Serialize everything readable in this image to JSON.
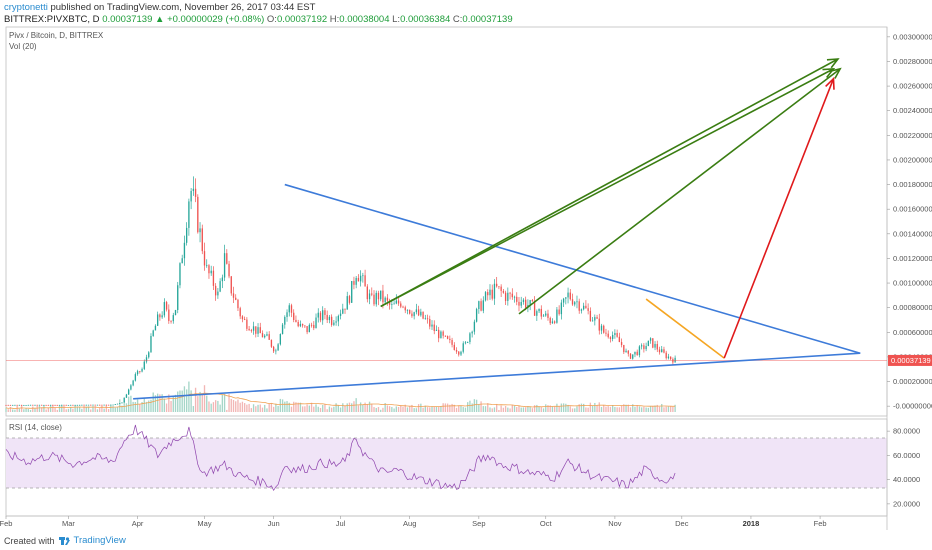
{
  "header": {
    "author": "cryptonetti",
    "published": " published on TradingView.com, November 26, 2017 03:44 EST",
    "symbol": "BITTREX:PIVXBTC, D",
    "last": "0.00037139",
    "up_arrow": "▲",
    "change": "+0.00000029 (+0.08%)",
    "o_label": "O:",
    "o_value": "0.00037192",
    "h_label": "H:",
    "h_value": "0.00038004",
    "l_label": "L:",
    "l_value": "0.00036384",
    "c_label": "C:",
    "c_value": "0.00037139"
  },
  "legend": {
    "pair": "Pivx / Bitcoin, D, BITTREX",
    "vol": "Vol (20)",
    "rsi": "RSI (14, close)"
  },
  "footer": {
    "created_with": "Created with",
    "brand": "TradingView"
  },
  "colors": {
    "up": "#26a69a",
    "down": "#ef5350",
    "trend_blue": "#3d7bd9",
    "green_arrow": "#3a7d12",
    "red_arrow": "#e0191b",
    "orange_line": "#f5a623",
    "rsi_band": "#f0e4f7",
    "price_tag": "#ef5350"
  },
  "chart_data": {
    "type": "candlestick",
    "symbol": "BITTREX:PIVXBTC",
    "interval": "D",
    "current_price": "0.00037139",
    "price_axis": {
      "ticks": [
        0.003,
        0.0028,
        0.0026,
        0.0024,
        0.0022,
        0.002,
        0.0018,
        0.0016,
        0.0014,
        0.0012,
        0.001,
        0.0008,
        0.0006,
        0.0004,
        0.0002,
        0.0
      ],
      "tick_labels": [
        "0.00300000",
        "0.00280000",
        "0.00260000",
        "0.00240000",
        "0.00220000",
        "0.00200000",
        "0.00180000",
        "0.00160000",
        "0.00140000",
        "0.00120000",
        "0.00100000",
        "0.00080000",
        "0.00060000",
        "0.00040000",
        "0.00020000",
        "-0.00000000"
      ],
      "range": [
        -8e-05,
        0.00308
      ]
    },
    "rsi_axis": {
      "ticks": [
        80,
        60,
        40,
        20
      ],
      "tick_labels": [
        "80.0000",
        "60.0000",
        "40.0000",
        "20.0000"
      ],
      "band": [
        30,
        70
      ],
      "range": [
        10,
        90
      ]
    },
    "time_axis": {
      "labels": [
        "Feb",
        "Mar",
        "Apr",
        "May",
        "Jun",
        "Jul",
        "Aug",
        "Sep",
        "Oct",
        "Nov",
        "Dec",
        "2018",
        "Feb"
      ],
      "bold_label": "2018",
      "day_offsets": [
        0,
        28,
        59,
        89,
        120,
        150,
        181,
        212,
        242,
        273,
        303,
        334,
        365
      ],
      "start": "2017-02-01",
      "end_offset": 395
    },
    "annotations": {
      "triangle_upper": [
        [
          125,
          0.0018
        ],
        [
          383,
          0.00043
        ]
      ],
      "triangle_lower": [
        [
          57,
          6e-05
        ],
        [
          383,
          0.00043
        ]
      ],
      "orange_line": [
        [
          287,
          0.00087
        ],
        [
          322,
          0.00039
        ]
      ],
      "green_arrows": [
        {
          "from": [
            168,
            0.00081
          ],
          "to": [
            373,
            0.00282
          ]
        },
        {
          "from": [
            230,
            0.00075
          ],
          "to": [
            374,
            0.00274
          ]
        },
        {
          "from": [
            168,
            0.00081
          ],
          "to": [
            371,
            0.00274
          ]
        }
      ],
      "red_arrow": {
        "from": [
          322,
          0.00039
        ],
        "to": [
          371,
          0.00266
        ]
      }
    },
    "price_keypoints": [
      [
        0,
        1e-05
      ],
      [
        30,
        1e-05
      ],
      [
        48,
        1.2e-05
      ],
      [
        52,
        3e-05
      ],
      [
        54,
        0.0001
      ],
      [
        56,
        0.00017
      ],
      [
        58,
        0.00025
      ],
      [
        61,
        0.0003
      ],
      [
        63,
        0.0004
      ],
      [
        66,
        0.0006
      ],
      [
        68,
        0.0007
      ],
      [
        71,
        0.0008
      ],
      [
        73,
        0.0007
      ],
      [
        76,
        0.0008
      ],
      [
        78,
        0.0011
      ],
      [
        80,
        0.0014
      ],
      [
        82,
        0.0017
      ],
      [
        83,
        0.00175
      ],
      [
        85,
        0.0016
      ],
      [
        88,
        0.0013
      ],
      [
        90,
        0.0011
      ],
      [
        93,
        0.001
      ],
      [
        95,
        0.0009
      ],
      [
        98,
        0.0012
      ],
      [
        100,
        0.001
      ],
      [
        103,
        0.00085
      ],
      [
        106,
        0.0007
      ],
      [
        110,
        0.00065
      ],
      [
        113,
        0.0006
      ],
      [
        117,
        0.00055
      ],
      [
        121,
        0.00045
      ],
      [
        124,
        0.0007
      ],
      [
        127,
        0.0008
      ],
      [
        131,
        0.00065
      ],
      [
        135,
        0.00062
      ],
      [
        139,
        0.0007
      ],
      [
        143,
        0.00075
      ],
      [
        146,
        0.0007
      ],
      [
        150,
        0.00078
      ],
      [
        153,
        0.00085
      ],
      [
        155,
        0.00095
      ],
      [
        157,
        0.0011
      ],
      [
        159,
        0.00105
      ],
      [
        161,
        0.00095
      ],
      [
        164,
        0.00085
      ],
      [
        167,
        0.0009
      ],
      [
        170,
        0.00085
      ],
      [
        173,
        0.0008
      ],
      [
        177,
        0.00085
      ],
      [
        180,
        0.0008
      ],
      [
        184,
        0.00075
      ],
      [
        188,
        0.0007
      ],
      [
        192,
        0.00062
      ],
      [
        196,
        0.00055
      ],
      [
        200,
        0.0005
      ],
      [
        203,
        0.00045
      ],
      [
        206,
        0.0005
      ],
      [
        209,
        0.00065
      ],
      [
        212,
        0.0008
      ],
      [
        216,
        0.0009
      ],
      [
        220,
        0.00095
      ],
      [
        224,
        0.0009
      ],
      [
        228,
        0.00088
      ],
      [
        232,
        0.00085
      ],
      [
        236,
        0.0008
      ],
      [
        240,
        0.00075
      ],
      [
        244,
        0.0007
      ],
      [
        248,
        0.00075
      ],
      [
        252,
        0.0009
      ],
      [
        256,
        0.00085
      ],
      [
        260,
        0.00078
      ],
      [
        264,
        0.0007
      ],
      [
        268,
        0.0006
      ],
      [
        272,
        0.00058
      ],
      [
        276,
        0.0005
      ],
      [
        279,
        0.0004
      ],
      [
        282,
        0.00043
      ],
      [
        286,
        0.00048
      ],
      [
        289,
        0.00052
      ],
      [
        292,
        0.00047
      ],
      [
        295,
        0.00042
      ],
      [
        298,
        0.00039
      ],
      [
        300,
        0.00037139
      ]
    ],
    "rsi_keypoints": [
      [
        0,
        61
      ],
      [
        10,
        55
      ],
      [
        20,
        60
      ],
      [
        30,
        53
      ],
      [
        40,
        58
      ],
      [
        48,
        55
      ],
      [
        54,
        75
      ],
      [
        58,
        82
      ],
      [
        63,
        72
      ],
      [
        68,
        60
      ],
      [
        73,
        70
      ],
      [
        78,
        76
      ],
      [
        82,
        80
      ],
      [
        85,
        62
      ],
      [
        88,
        45
      ],
      [
        92,
        48
      ],
      [
        98,
        52
      ],
      [
        104,
        44
      ],
      [
        110,
        40
      ],
      [
        116,
        38
      ],
      [
        121,
        33
      ],
      [
        125,
        52
      ],
      [
        130,
        48
      ],
      [
        136,
        50
      ],
      [
        142,
        54
      ],
      [
        148,
        52
      ],
      [
        152,
        55
      ],
      [
        157,
        74
      ],
      [
        160,
        63
      ],
      [
        165,
        52
      ],
      [
        170,
        45
      ],
      [
        175,
        48
      ],
      [
        180,
        44
      ],
      [
        186,
        40
      ],
      [
        192,
        38
      ],
      [
        197,
        35
      ],
      [
        202,
        34
      ],
      [
        207,
        42
      ],
      [
        212,
        56
      ],
      [
        217,
        60
      ],
      [
        222,
        52
      ],
      [
        228,
        50
      ],
      [
        234,
        46
      ],
      [
        240,
        44
      ],
      [
        246,
        42
      ],
      [
        252,
        54
      ],
      [
        256,
        50
      ],
      [
        262,
        44
      ],
      [
        268,
        40
      ],
      [
        274,
        38
      ],
      [
        278,
        35
      ],
      [
        282,
        40
      ],
      [
        286,
        48
      ],
      [
        290,
        45
      ],
      [
        294,
        40
      ],
      [
        298,
        41
      ],
      [
        300,
        42
      ]
    ]
  }
}
